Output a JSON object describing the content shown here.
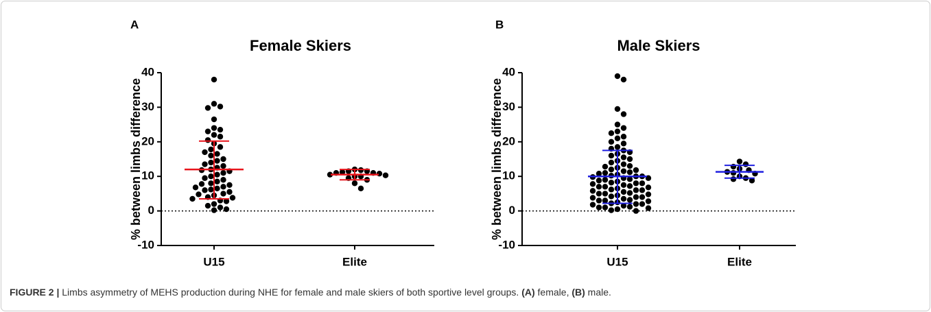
{
  "chart_data": [
    {
      "type": "dot",
      "label": "A",
      "title": "Female Skiers",
      "y_label": "% between limbs difference",
      "categories": [
        "U15",
        "Elite"
      ],
      "values": [
        [
          38,
          31,
          30.2,
          29.8,
          26.5,
          24,
          23.5,
          23,
          22,
          21.5,
          20.5,
          19.5,
          18.5,
          17.8,
          17,
          16.5,
          16,
          15,
          14.5,
          14,
          13.5,
          13,
          12.5,
          12,
          11.8,
          11.5,
          11,
          10.5,
          10,
          9.5,
          9,
          8.5,
          8,
          7.8,
          7.5,
          7,
          6.8,
          6.5,
          6.2,
          6,
          5.5,
          5,
          4.8,
          4.5,
          4,
          3.8,
          3.5,
          3,
          2.8,
          2,
          1.5,
          1,
          0.5,
          0.2
        ],
        [
          12,
          11.8,
          11.5,
          11.5,
          11.2,
          11,
          11,
          10.8,
          10.5,
          10.3,
          10,
          10,
          9.5,
          9,
          8,
          6.5
        ]
      ],
      "center": [
        12,
        10.5
      ],
      "error_low": [
        3.5,
        9
      ],
      "error_high": [
        20.2,
        12
      ],
      "error_color": "#e8141b",
      "color": "#000000",
      "ylim": [
        -10,
        40
      ],
      "yticks": [
        -10,
        0,
        10,
        20,
        30,
        40
      ],
      "reference_line": 0
    },
    {
      "type": "dot",
      "label": "B",
      "title": "Male Skiers",
      "y_label": "% between limbs difference",
      "categories": [
        "U15",
        "Elite"
      ],
      "values": [
        [
          39,
          38,
          29.5,
          28,
          25,
          24,
          23,
          22.5,
          21.5,
          21,
          20,
          19.5,
          18.5,
          18,
          17.5,
          17,
          16.5,
          16,
          15.5,
          15,
          14.5,
          14,
          13.5,
          13,
          12.8,
          12.5,
          12,
          11.8,
          11.5,
          11.2,
          11,
          10.8,
          10.5,
          10.2,
          10,
          10,
          9.8,
          9.5,
          9.5,
          9.2,
          9,
          8.8,
          8.5,
          8.2,
          8,
          8,
          7.8,
          7.5,
          7.2,
          7,
          7,
          6.8,
          6.5,
          6.2,
          6,
          6,
          5.8,
          5.5,
          5.2,
          5,
          5,
          4.8,
          4.5,
          4.2,
          4,
          4,
          3.8,
          3.5,
          3.2,
          3,
          3,
          2.8,
          2.5,
          2.2,
          2,
          2,
          1.8,
          1.5,
          1.2,
          1,
          1,
          0.8,
          0.5,
          0.2,
          0
        ],
        [
          14.3,
          13.5,
          12.8,
          12.2,
          11.8,
          11.3,
          11,
          10.8,
          10,
          9.5,
          9.2,
          8.8
        ]
      ],
      "center": [
        10,
        11.3
      ],
      "error_low": [
        2.2,
        9.5
      ],
      "error_high": [
        17.5,
        13.2
      ],
      "error_color": "#1f1fe0",
      "color": "#000000",
      "ylim": [
        -10,
        40
      ],
      "yticks": [
        -10,
        0,
        10,
        20,
        30,
        40
      ],
      "reference_line": 0
    }
  ],
  "caption": [
    {
      "text": "FIGURE 2 |",
      "bold": true
    },
    {
      "text": " Limbs asymmetry of MEHS production during NHE for female and male skiers of both sportive level groups. "
    },
    {
      "text": "(A)",
      "bold": true
    },
    {
      "text": " female, "
    },
    {
      "text": "(B)",
      "bold": true
    },
    {
      "text": " male."
    }
  ]
}
